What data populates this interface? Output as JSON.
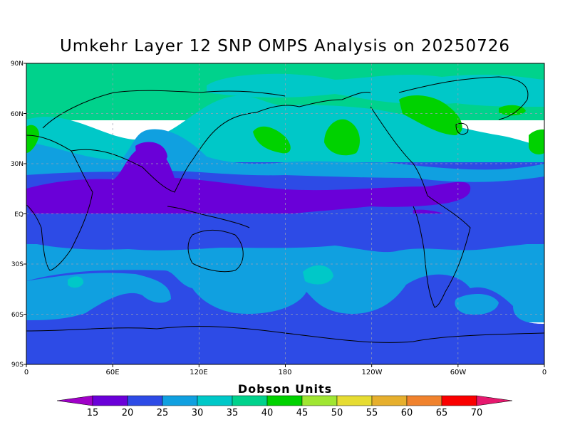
{
  "title": "Umkehr Layer 12 SNP OMPS Analysis on 20250726",
  "y_axis_labels": [
    "90N",
    "60N",
    "30N",
    "EQ",
    "30S",
    "60S",
    "90S"
  ],
  "x_axis_labels": [
    "0",
    "60E",
    "120E",
    "180",
    "120W",
    "60W",
    "0"
  ],
  "colorbar": {
    "title": "Dobson Units",
    "tick_labels": [
      "15",
      "20",
      "25",
      "30",
      "35",
      "40",
      "45",
      "50",
      "55",
      "60",
      "65",
      "70"
    ],
    "colors": [
      "#a000c8",
      "#6a00d8",
      "#2d4be6",
      "#10a0e0",
      "#00c8c8",
      "#00d28c",
      "#00d200",
      "#a0e632",
      "#e6dc32",
      "#e6af2d",
      "#f0822d",
      "#fa0000",
      "#e6186e"
    ]
  },
  "map_colors": {
    "band_purple": "#6a00d8",
    "band_blue": "#2d4be6",
    "band_lightblue": "#10a0e0",
    "band_cyan": "#00c8c8",
    "band_teal": "#00d28c",
    "band_green": "#00d200",
    "grid": "#9aa0b4",
    "coast": "#000000"
  }
}
